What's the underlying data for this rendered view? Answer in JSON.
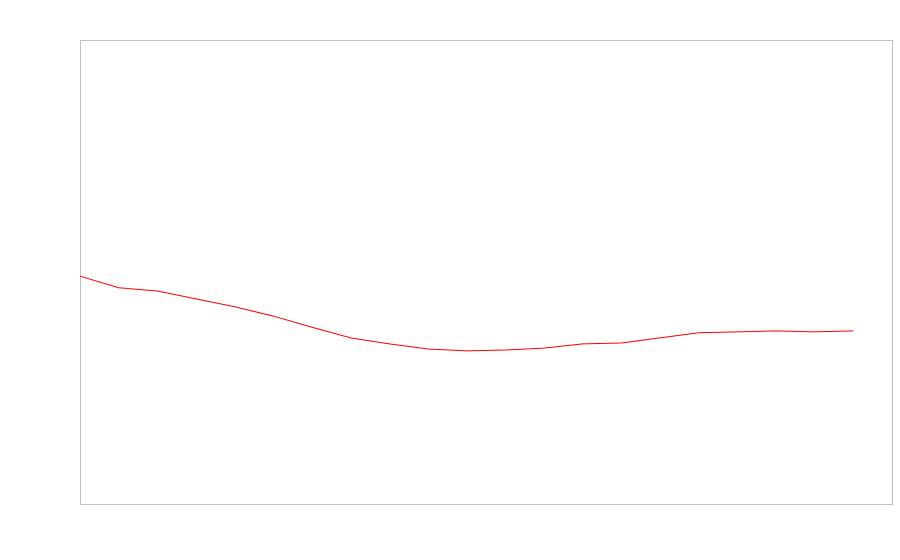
{
  "chart_data": {
    "type": "line",
    "title": "",
    "xlabel": "",
    "ylabel": "",
    "x": [
      0,
      1,
      2,
      3,
      4,
      5,
      6,
      7,
      8,
      9,
      10,
      11,
      12,
      13,
      14,
      15,
      16,
      17,
      18,
      19,
      20
    ],
    "xlim": [
      0,
      21
    ],
    "ylim": [
      0,
      100
    ],
    "grid": false,
    "series": [
      {
        "color": "#ff0000",
        "values": [
          49.1,
          46.6,
          45.9,
          44.2,
          42.5,
          40.5,
          38.1,
          35.8,
          34.5,
          33.4,
          33.0,
          33.2,
          33.6,
          34.5,
          34.7,
          35.8,
          36.9,
          37.1,
          37.3,
          37.1,
          37.3
        ]
      }
    ],
    "frame_color": "#c0c0c0"
  }
}
